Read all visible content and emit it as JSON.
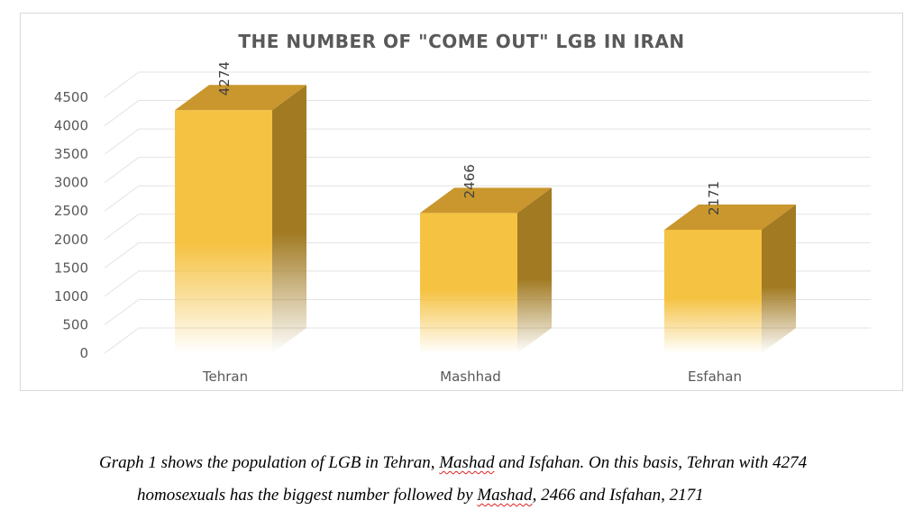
{
  "chart_data": {
    "type": "bar",
    "title": "THE NUMBER OF \"COME OUT\" LGB IN IRAN",
    "categories": [
      "Tehran",
      "Mashhad",
      "Esfahan"
    ],
    "values": [
      4274,
      2466,
      2171
    ],
    "data_labels": [
      "4274",
      "2466",
      "2171"
    ],
    "ylim": [
      0,
      4500
    ],
    "yticks": [
      "0",
      "500",
      "1000",
      "1500",
      "2000",
      "2500",
      "3000",
      "3500",
      "4000",
      "4500"
    ],
    "xlabel": "",
    "ylabel": "",
    "grid": true,
    "style": "3d-column",
    "colors": {
      "front": "#f5c242",
      "top": "#c9972d",
      "side": "#a17a22",
      "grid": "#e3e3e3",
      "text": "#595959"
    }
  },
  "caption": {
    "line1_before": "Graph 1 shows the population of LGB in Tehran, ",
    "line1_word": "Mashad",
    "line1_after": " and Isfahan. On this basis, Tehran with 4274",
    "line2_before": "homosexuals has the biggest number followed by ",
    "line2_word": "Mashad",
    "line2_after": ", 2466 and Isfahan, 2171"
  }
}
